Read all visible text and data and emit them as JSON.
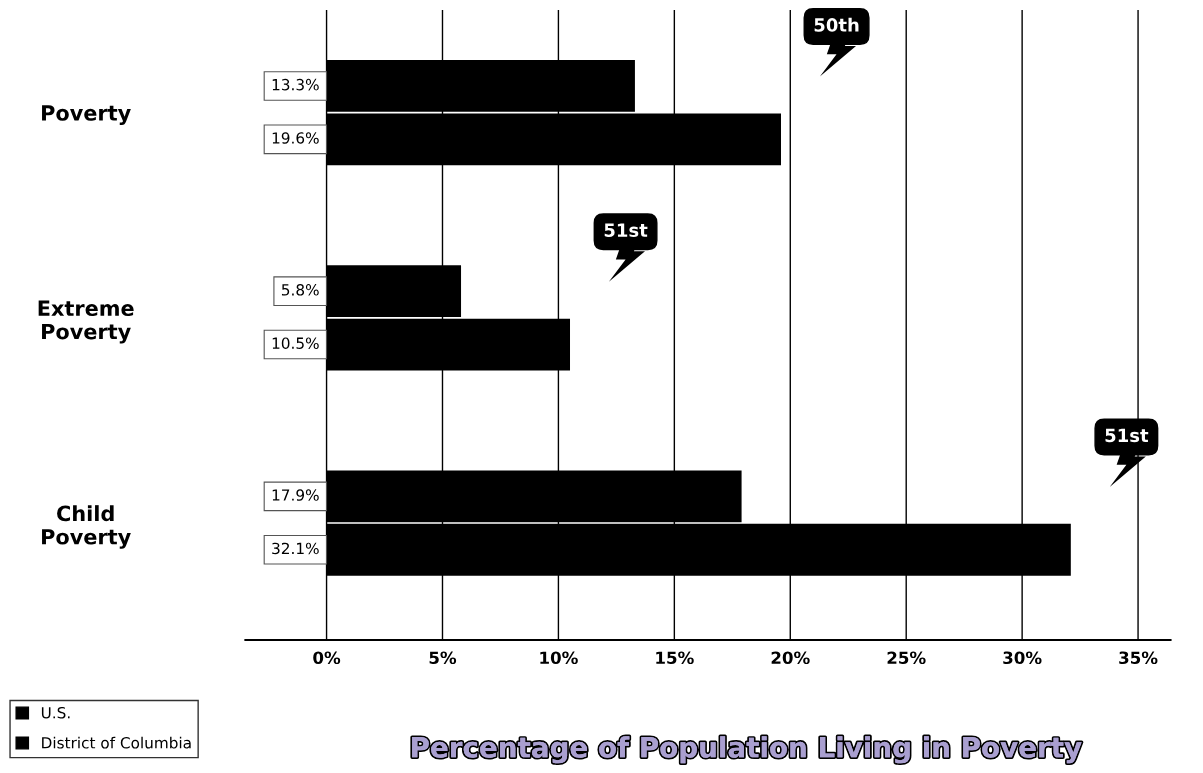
{
  "chart_data": {
    "type": "bar",
    "orientation": "horizontal",
    "title": "Percentage of Population Living in Poverty",
    "categories": [
      "Poverty",
      "Extreme\nPoverty",
      "Child\nPoverty"
    ],
    "series": [
      {
        "name": "U.S.",
        "color": "#000000",
        "values": [
          13.3,
          5.8,
          17.9
        ],
        "value_labels": [
          "13.3%",
          "5.8%",
          "17.9%"
        ]
      },
      {
        "name": "District of Columbia",
        "color": "#000000",
        "values": [
          19.6,
          10.5,
          32.1
        ],
        "value_labels": [
          "19.6%",
          "10.5%",
          "32.1%"
        ]
      }
    ],
    "xlim": [
      -3.5,
      36.4
    ],
    "xticks": [
      {
        "value": 0,
        "label": "0%"
      },
      {
        "value": 5,
        "label": "5%"
      },
      {
        "value": 10,
        "label": "10%"
      },
      {
        "value": 15,
        "label": "15%"
      },
      {
        "value": 20,
        "label": "20%"
      },
      {
        "value": 25,
        "label": "25%"
      },
      {
        "value": 30,
        "label": "30%"
      },
      {
        "value": 35,
        "label": "35%"
      }
    ],
    "grid": "x",
    "legend": "bottom left",
    "annotations": [
      "50th",
      "51st",
      "51st"
    ]
  }
}
